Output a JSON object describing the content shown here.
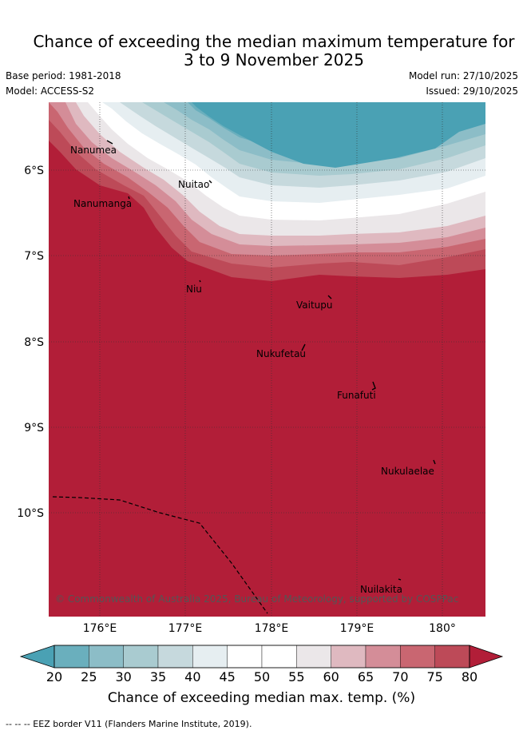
{
  "title_line1": "Chance of exceeding the median maximum temperature for",
  "title_line2": "3 to 9 November 2025",
  "base_period": "Base period: 1981-2018",
  "model": "Model: ACCESS-S2",
  "model_run": "Model run: 27/10/2025",
  "issued": "Issued: 29/10/2025",
  "places": [
    "Nanumea",
    "Nuitao",
    "Nanumanga",
    "Niu",
    "Vaitupu",
    "Nukufetau",
    "Funafuti",
    "Nukulaelae",
    "Nuilakita"
  ],
  "lat_labels": [
    "6°S",
    "7°S",
    "8°S",
    "9°S",
    "10°S"
  ],
  "lon_labels": [
    "176°E",
    "177°E",
    "178°E",
    "179°E",
    "180°"
  ],
  "copyright": "© Commonwealth of Australia 2025, Bureau of Meteorology, supported by COSPPac",
  "colorbar": {
    "ticks": [
      "20",
      "25",
      "30",
      "35",
      "40",
      "45",
      "50",
      "55",
      "60",
      "65",
      "70",
      "75",
      "80"
    ],
    "colors": [
      "#4aa1b4",
      "#6aafbd",
      "#8cbdc7",
      "#a9cbd0",
      "#c6d9dd",
      "#e6eef1",
      "#ffffff",
      "#ffffff",
      "#ebe7e9",
      "#dfb9c0",
      "#d48d98",
      "#c96671",
      "#bd4a58",
      "#b21e38"
    ],
    "label": "Chance of exceeding median max. temp. (%)"
  },
  "footer": "--  --  -- EEZ border V11 (Flanders Marine Institute, 2019)."
}
